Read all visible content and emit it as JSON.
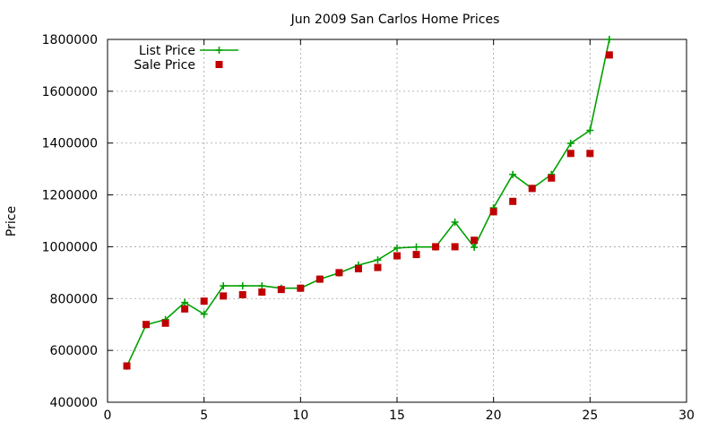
{
  "chart_data": {
    "type": "line",
    "title": "Jun 2009 San Carlos Home Prices",
    "xlabel": "",
    "ylabel": "Price",
    "xlim": [
      0,
      30
    ],
    "ylim": [
      400000,
      1800000
    ],
    "x_ticks": [
      0,
      5,
      10,
      15,
      20,
      25,
      30
    ],
    "y_ticks": [
      400000,
      600000,
      800000,
      1000000,
      1200000,
      1400000,
      1600000,
      1800000
    ],
    "grid": true,
    "legend_position": "top-left",
    "series": [
      {
        "name": "List Price",
        "style": "line-with-plus-markers",
        "color": "#00a000",
        "x": [
          1,
          2,
          3,
          4,
          5,
          6,
          7,
          8,
          9,
          10,
          11,
          12,
          13,
          14,
          15,
          16,
          17,
          18,
          19,
          20,
          21,
          22,
          23,
          24,
          25,
          26
        ],
        "values": [
          539000,
          699000,
          719000,
          785000,
          740000,
          849000,
          849000,
          849000,
          840000,
          840000,
          875000,
          899000,
          929000,
          949000,
          995000,
          999000,
          999000,
          1095000,
          998000,
          1150000,
          1279000,
          1225000,
          1279000,
          1399000,
          1449000,
          1800000
        ]
      },
      {
        "name": "Sale Price",
        "style": "square-markers",
        "color": "#c00000",
        "x": [
          1,
          2,
          3,
          4,
          5,
          6,
          7,
          8,
          9,
          10,
          11,
          12,
          13,
          14,
          15,
          16,
          17,
          18,
          19,
          20,
          21,
          22,
          23,
          24,
          25,
          26
        ],
        "values": [
          540000,
          700000,
          705000,
          760000,
          790000,
          810000,
          815000,
          825000,
          835000,
          840000,
          875000,
          900000,
          915000,
          920000,
          965000,
          970000,
          1000000,
          1000000,
          1025000,
          1135000,
          1175000,
          1225000,
          1265000,
          1360000,
          1360000,
          1740000
        ]
      }
    ]
  }
}
